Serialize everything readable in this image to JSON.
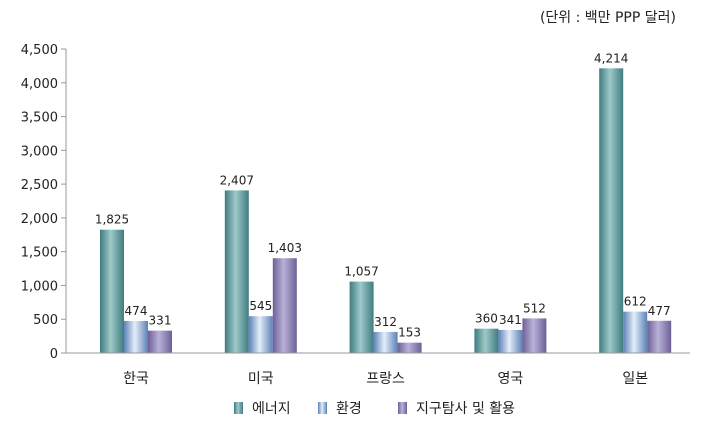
{
  "chart_data": {
    "type": "bar",
    "unit_label": "(단위 : 백만 PPP 달러)",
    "categories": [
      "한국",
      "미국",
      "프랑스",
      "영국",
      "일본"
    ],
    "series": [
      {
        "name": "에너지",
        "values": [
          1825,
          2407,
          1057,
          360,
          4214
        ],
        "labels": [
          "1,825",
          "2,407",
          "1,057",
          "360",
          "4,214"
        ]
      },
      {
        "name": "환경",
        "values": [
          474,
          545,
          312,
          341,
          612
        ],
        "labels": [
          "474",
          "545",
          "312",
          "341",
          "612"
        ]
      },
      {
        "name": "지구탐사 및 활용",
        "values": [
          331,
          1403,
          153,
          512,
          477
        ],
        "labels": [
          "331",
          "1,403",
          "153",
          "512",
          "477"
        ]
      }
    ],
    "ylim": [
      0,
      4500
    ],
    "yticks": [
      0,
      500,
      1000,
      1500,
      2000,
      2500,
      3000,
      3500,
      4000,
      4500
    ],
    "ytick_labels": [
      "0",
      "500",
      "1,000",
      "1,500",
      "2,000",
      "2,500",
      "3,000",
      "3,500",
      "4,000",
      "4,500"
    ],
    "grid": false,
    "legend_position": "bottom-center",
    "colors": {
      "series0_dark": "#3f7c80",
      "series0_light": "#9fc9c9",
      "series1_dark": "#5d81b6",
      "series1_light": "#e4eefa",
      "series2_dark": "#6e5f96",
      "series2_light": "#b9b2d8",
      "axis": "#9a9a9a"
    }
  }
}
